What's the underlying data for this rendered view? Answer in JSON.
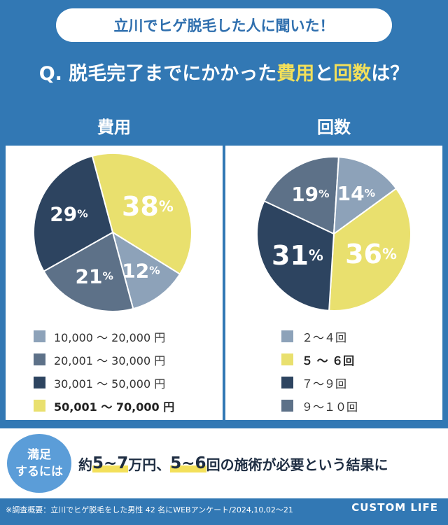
{
  "header": {
    "pill": "立川でヒゲ脱毛した人に聞いた！"
  },
  "question": {
    "prefix": "Q. 脱毛完了までにかかった",
    "hl1": "費用",
    "mid": "と",
    "hl2": "回数",
    "suffix": "は？"
  },
  "chart_data": [
    {
      "type": "pie",
      "title": "費用",
      "slices": [
        {
          "label": "10,000 ～ 20,000 円",
          "value": 12,
          "color": "#8da2b9"
        },
        {
          "label": "20,001 ～ 30,000 円",
          "value": 21,
          "color": "#5d7188"
        },
        {
          "label": "30,001 ～ 50,000 円",
          "value": 29,
          "color": "#2d4460"
        },
        {
          "label": "50,001 ～ 70,000 円",
          "value": 38,
          "color": "#e9e06e"
        }
      ],
      "percent_labels": [
        "12",
        "21",
        "29",
        "38"
      ],
      "highlight": "50,001 ～ 70,000 円"
    },
    {
      "type": "pie",
      "title": "回数",
      "slices": [
        {
          "label": "２～４回",
          "value": 14,
          "color": "#8da2b9"
        },
        {
          "label": "５ ～ ６回",
          "value": 36,
          "color": "#e9e06e"
        },
        {
          "label": "７～９回",
          "value": 31,
          "color": "#2d4460"
        },
        {
          "label": "９～１０回",
          "value": 19,
          "color": "#5d7188"
        }
      ],
      "percent_labels": [
        "14",
        "36",
        "31",
        "19"
      ],
      "highlight": "５ ～ ６回"
    }
  ],
  "footer": {
    "badge_line1": "満足",
    "badge_line2": "するには",
    "summary_prefix": "約",
    "summary_big1": "5~7",
    "summary_mid1": "万円、",
    "summary_big2": "5~6",
    "summary_mid2": "回",
    "summary_suffix": "の施術が必要という結果に"
  },
  "note": "※調査概要：立川でヒゲ脱毛をした男性 42 名にWEBアンケート/2024,10,02～21",
  "brand": "CUSTOM LIFE"
}
